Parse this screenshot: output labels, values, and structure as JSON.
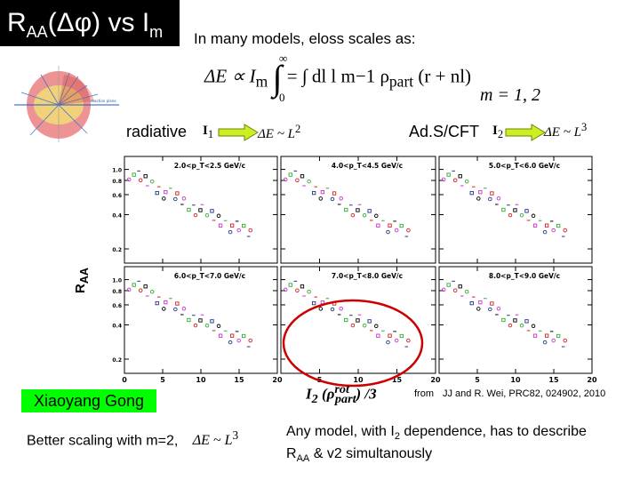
{
  "title": {
    "main": "R",
    "sub": "AA",
    "rest": "(Δφ) vs I",
    "sub2": "m"
  },
  "intro": "In many models, eloss scales as:",
  "formula": {
    "lhs": "ΔE ∝ I",
    "sub": "m",
    "rhs": "= ∫ dl l m−1 ρ",
    "part_sub": "part",
    "arg": "(r + nl)",
    "upper": "∞",
    "lower": "0"
  },
  "m_values": "m = 1, 2",
  "radiative": {
    "label": "radiative",
    "ivar": "I",
    "ivar_sub": "1",
    "scaling": "ΔE ~ L",
    "scaling_sup": "2"
  },
  "ads": {
    "label": "Ad.S/CFT",
    "ivar": "I",
    "ivar_sub": "2",
    "scaling": "ΔE ~ L",
    "scaling_sup": "3"
  },
  "yaxis_label": "R",
  "yaxis_sub": "AA",
  "xaxis_label": "I",
  "xaxis_sub": "2",
  "xaxis_rest": " (ρ",
  "xaxis_sup": "rot",
  "xaxis_sub2": "part",
  "xaxis_end": ") /3",
  "from_label": "from",
  "reference": "JJ and R. Wei, PRC82, 024902, 2010",
  "author": "Xiaoyang Gong",
  "better_scaling": "Better scaling with m=2,",
  "better_scaling_formula": "ΔE ~ L",
  "better_scaling_sup": "3",
  "conclusion": {
    "line1a": "Any model, with I",
    "line1sub": "2",
    "line1b": " dependence, has to describe",
    "line2a": "R",
    "line2sub": "AA",
    "line2b": " & v2 simultanously"
  },
  "colors": {
    "green_box": "#00ff00",
    "highlight_circle": "#cc0000",
    "arrow": "#ccee22",
    "marker_magenta": "#cc33cc",
    "marker_green": "#33aa33",
    "marker_navy": "#223388",
    "marker_red": "#cc2222",
    "marker_black": "#000000"
  },
  "chart_data": {
    "type": "scatter",
    "panels": [
      {
        "title": "2.0<p_T<2.5 GeV/c"
      },
      {
        "title": "4.0<p_T<4.5 GeV/c"
      },
      {
        "title": "5.0<p_T<6.0 GeV/c"
      },
      {
        "title": "6.0<p_T<7.0 GeV/c"
      },
      {
        "title": "7.0<p_T<8.0 GeV/c"
      },
      {
        "title": "8.0<p_T<9.0 GeV/c"
      }
    ],
    "xlim": [
      0,
      20
    ],
    "ylim": [
      0.15,
      1.3
    ],
    "yscale": "log",
    "x_ticks": [
      "0",
      "5",
      "10",
      "15",
      "20"
    ],
    "y_ticks": [
      "1.0",
      "0.8",
      "0.6",
      "0.4",
      "0.2"
    ],
    "y_tick_values": [
      1.0,
      0.8,
      0.6,
      0.4,
      0.2
    ]
  }
}
